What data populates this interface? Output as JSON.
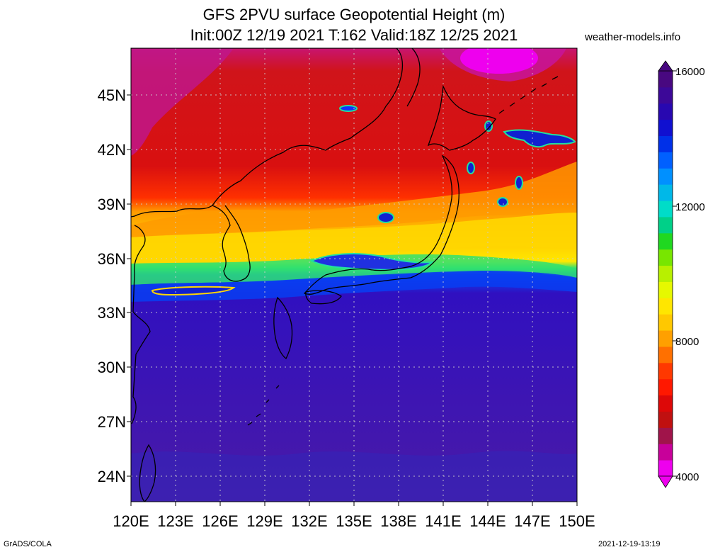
{
  "title": {
    "line1": "GFS 2PVU surface Geopotential Height (m)",
    "line2": "Init:00Z 12/19 2021 T:162 Valid:18Z 12/25 2021"
  },
  "site": "weather-models.info",
  "footer": {
    "software": "GrADS/COLA",
    "timestamp": "2021-12-19-13:19"
  },
  "map": {
    "lat_labels": [
      "45N",
      "42N",
      "39N",
      "36N",
      "33N",
      "30N",
      "27N",
      "24N"
    ],
    "lon_labels": [
      "120E",
      "123E",
      "126E",
      "129E",
      "132E",
      "135E",
      "138E",
      "141E",
      "144E",
      "147E",
      "150E"
    ],
    "extent": {
      "lon_min": 120,
      "lon_max": 150,
      "lat_min": 22.5,
      "lat_max": 47.5
    }
  },
  "colorbar": {
    "labels": [
      "16000",
      "12000",
      "8000",
      "4000"
    ],
    "range": [
      4000,
      16000
    ],
    "colors": [
      "#ee00ee",
      "#c8009a",
      "#a0144a",
      "#c01010",
      "#dd0808",
      "#ff1800",
      "#ff3800",
      "#ff7000",
      "#ffa000",
      "#ffc800",
      "#ffe600",
      "#e6f800",
      "#b8f000",
      "#78e600",
      "#20d820",
      "#00d088",
      "#00dcc8",
      "#00b8e8",
      "#0090ff",
      "#0060ff",
      "#0030e8",
      "#1010d0",
      "#2808b0",
      "#3c0898",
      "#480880"
    ]
  },
  "colors": {
    "ocean_low": "#4a1aa6",
    "jet_yellow": "#ffd800",
    "jet_orange": "#ff9a00",
    "north_red": "#cc1010",
    "north_magenta": "#c8148c"
  }
}
